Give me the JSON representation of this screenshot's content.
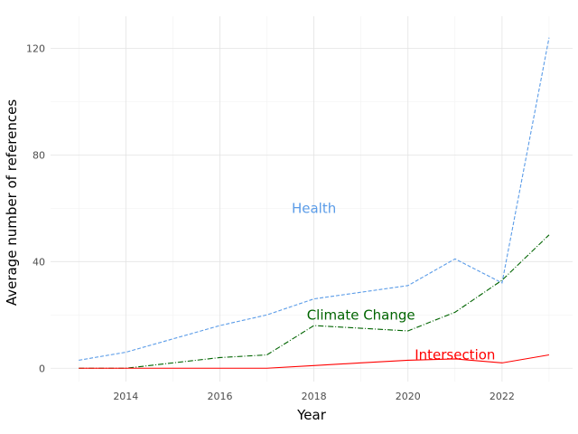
{
  "chart_data": {
    "type": "line",
    "title": "",
    "xlabel": "Year",
    "ylabel": "Average number of references",
    "xlim": [
      2012.4,
      2023.5
    ],
    "ylim": [
      -5,
      132
    ],
    "x_ticks": [
      2014,
      2016,
      2018,
      2020,
      2022
    ],
    "y_ticks": [
      0,
      40,
      80,
      120
    ],
    "x_tick_labels": [
      "2014",
      "2016",
      "2018",
      "2020",
      "2022"
    ],
    "y_tick_labels": [
      "0",
      "40",
      "80",
      "120"
    ],
    "grid": true,
    "legend": "none",
    "series": [
      {
        "name": "Health",
        "color": "#5b9ce8",
        "dash": "dashed",
        "label_at": [
          2018.0,
          60
        ],
        "x": [
          2013,
          2014,
          2015,
          2016,
          2017,
          2018,
          2019,
          2020,
          2021,
          2022,
          2023
        ],
        "y": [
          3,
          6,
          11,
          16,
          20,
          26,
          28.5,
          31,
          41,
          32,
          124
        ]
      },
      {
        "name": "Climate Change",
        "color": "#006400",
        "dash": "dotdash",
        "label_at": [
          2019.0,
          20
        ],
        "x": [
          2013,
          2014,
          2015,
          2016,
          2017,
          2018,
          2019,
          2020,
          2021,
          2022,
          2023
        ],
        "y": [
          0,
          0,
          2,
          4,
          5,
          16,
          15,
          14,
          21,
          33,
          50
        ]
      },
      {
        "name": "Intersection",
        "color": "#ff0000",
        "dash": "solid",
        "label_at": [
          2021.0,
          5
        ],
        "x": [
          2013,
          2014,
          2015,
          2016,
          2017,
          2018,
          2019,
          2020,
          2021,
          2022,
          2023
        ],
        "y": [
          0,
          0,
          0,
          0,
          0,
          1,
          2,
          3,
          3.5,
          2,
          5
        ]
      }
    ]
  }
}
